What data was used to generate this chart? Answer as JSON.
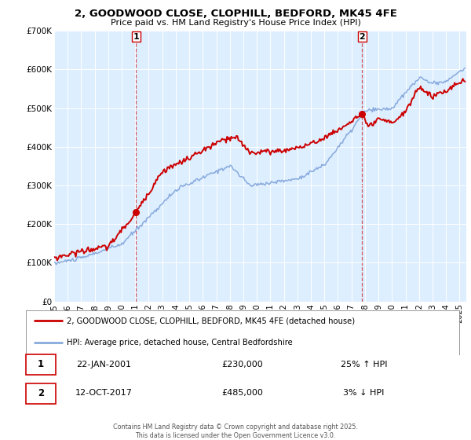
{
  "title": "2, GOODWOOD CLOSE, CLOPHILL, BEDFORD, MK45 4FE",
  "subtitle": "Price paid vs. HM Land Registry's House Price Index (HPI)",
  "footer": "Contains HM Land Registry data © Crown copyright and database right 2025.\nThis data is licensed under the Open Government Licence v3.0.",
  "legend_line1": "2, GOODWOOD CLOSE, CLOPHILL, BEDFORD, MK45 4FE (detached house)",
  "legend_line2": "HPI: Average price, detached house, Central Bedfordshire",
  "sale1_date": "22-JAN-2001",
  "sale1_price": "£230,000",
  "sale1_hpi": "25% ↑ HPI",
  "sale2_date": "12-OCT-2017",
  "sale2_price": "£485,000",
  "sale2_hpi": "3% ↓ HPI",
  "vline1_x": 2001.06,
  "vline2_x": 2017.79,
  "dot1_x": 2001.06,
  "dot1_y": 230000,
  "dot2_x": 2017.79,
  "dot2_y": 485000,
  "price_color": "#cc0000",
  "hpi_color": "#88aadd",
  "plot_bg_color": "#ddeeff",
  "ylim": [
    0,
    700000
  ],
  "xlim": [
    1995,
    2025.5
  ],
  "yticks": [
    0,
    100000,
    200000,
    300000,
    400000,
    500000,
    600000,
    700000
  ],
  "ytick_labels": [
    "£0",
    "£100K",
    "£200K",
    "£300K",
    "£400K",
    "£500K",
    "£600K",
    "£700K"
  ],
  "xtick_years": [
    1995,
    1996,
    1997,
    1998,
    1999,
    2000,
    2001,
    2002,
    2003,
    2004,
    2005,
    2006,
    2007,
    2008,
    2009,
    2010,
    2011,
    2012,
    2013,
    2014,
    2015,
    2016,
    2017,
    2018,
    2019,
    2020,
    2021,
    2022,
    2023,
    2024,
    2025
  ]
}
